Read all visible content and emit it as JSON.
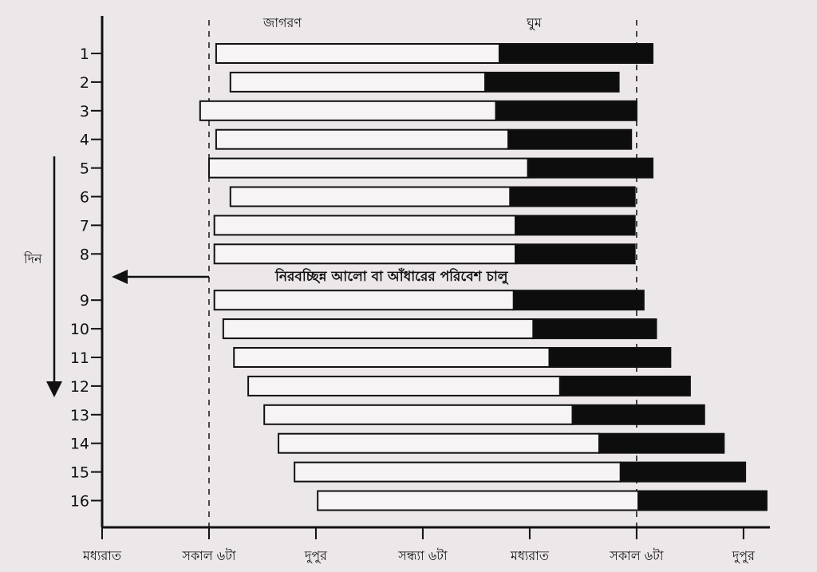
{
  "chart_data": {
    "type": "bar",
    "subtype": "floating-horizontal-bar",
    "title": "",
    "ylabel": "দিন",
    "legend": {
      "awake": "জাগরণ",
      "sleep": "ঘুম"
    },
    "annotation": "নিরবচ্ছিন্ন আলো বা আঁধারের পরিবেশ চালু",
    "annotation_after_day": 8,
    "x_unit": "hours since midnight of day",
    "xlim": [
      0,
      37
    ],
    "x_ticks": [
      {
        "value": 0,
        "label": "মধ্যরাত"
      },
      {
        "value": 6,
        "label": "সকাল ৬টা"
      },
      {
        "value": 12,
        "label": "দুপুর"
      },
      {
        "value": 18,
        "label": "সন্ধ্যা ৬টা"
      },
      {
        "value": 24,
        "label": "মধ্যরাত"
      },
      {
        "value": 30,
        "label": "সকাল ৬টা"
      },
      {
        "value": 36,
        "label": "দুপুর"
      }
    ],
    "dashed_reference_lines": [
      6,
      30
    ],
    "days": [
      {
        "day": "1",
        "wake": 6.4,
        "sleep": 22.3,
        "end": 30.9
      },
      {
        "day": "2",
        "wake": 7.2,
        "sleep": 21.5,
        "end": 29.0
      },
      {
        "day": "3",
        "wake": 5.5,
        "sleep": 22.1,
        "end": 30.0
      },
      {
        "day": "4",
        "wake": 6.4,
        "sleep": 22.8,
        "end": 29.7
      },
      {
        "day": "5",
        "wake": 6.0,
        "sleep": 23.9,
        "end": 30.9
      },
      {
        "day": "6",
        "wake": 7.2,
        "sleep": 22.9,
        "end": 29.9
      },
      {
        "day": "7",
        "wake": 6.3,
        "sleep": 23.2,
        "end": 29.9
      },
      {
        "day": "8",
        "wake": 6.3,
        "sleep": 23.2,
        "end": 29.9
      },
      {
        "day": "9",
        "wake": 6.3,
        "sleep": 23.1,
        "end": 30.4
      },
      {
        "day": "10",
        "wake": 6.8,
        "sleep": 24.2,
        "end": 31.1
      },
      {
        "day": "11",
        "wake": 7.4,
        "sleep": 25.1,
        "end": 31.9
      },
      {
        "day": "12",
        "wake": 8.2,
        "sleep": 25.7,
        "end": 33.0
      },
      {
        "day": "13",
        "wake": 9.1,
        "sleep": 26.4,
        "end": 33.8
      },
      {
        "day": "14",
        "wake": 9.9,
        "sleep": 27.9,
        "end": 34.9
      },
      {
        "day": "15",
        "wake": 10.8,
        "sleep": 29.1,
        "end": 36.1
      },
      {
        "day": "16",
        "wake": 12.1,
        "sleep": 30.1,
        "end": 37.3
      }
    ]
  }
}
